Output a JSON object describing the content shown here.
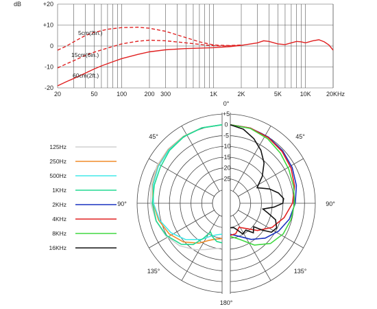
{
  "chart_data": [
    {
      "type": "line",
      "x_scale": "log",
      "ylabel": "dB",
      "xlim": [
        20,
        20000
      ],
      "ylim": [
        -20,
        20
      ],
      "y_ticks": [
        "+20",
        "+10",
        "0",
        "-10",
        "-20"
      ],
      "x_ticks": [
        {
          "v": 20,
          "label": "20"
        },
        {
          "v": 50,
          "label": "50"
        },
        {
          "v": 100,
          "label": "100"
        },
        {
          "v": 200,
          "label": "200"
        },
        {
          "v": 300,
          "label": "300"
        },
        {
          "v": 1000,
          "label": "1K"
        },
        {
          "v": 2000,
          "label": "2K"
        },
        {
          "v": 5000,
          "label": "5K"
        },
        {
          "v": 10000,
          "label": "10K"
        },
        {
          "v": 20000,
          "label": "20KHz"
        }
      ],
      "grid": true,
      "series": [
        {
          "name": "5cm(2in.)",
          "color": "#e02020",
          "dash": true,
          "points": [
            [
              20,
              -2
            ],
            [
              25,
              0
            ],
            [
              30,
              2
            ],
            [
              40,
              5
            ],
            [
              50,
              6.5
            ],
            [
              70,
              8
            ],
            [
              100,
              8.8
            ],
            [
              150,
              9
            ],
            [
              200,
              8.5
            ],
            [
              300,
              7
            ],
            [
              500,
              4
            ],
            [
              700,
              2
            ],
            [
              1000,
              0.5
            ],
            [
              1500,
              0.2
            ],
            [
              2000,
              0.5
            ]
          ]
        },
        {
          "name": "15cm(6in.)",
          "color": "#e02020",
          "dash": true,
          "points": [
            [
              20,
              -10.5
            ],
            [
              25,
              -8.5
            ],
            [
              30,
              -7
            ],
            [
              40,
              -4.5
            ],
            [
              50,
              -3
            ],
            [
              70,
              -1
            ],
            [
              100,
              1
            ],
            [
              150,
              2.3
            ],
            [
              200,
              2.8
            ],
            [
              300,
              2.5
            ],
            [
              500,
              1.5
            ],
            [
              800,
              0.5
            ],
            [
              1200,
              0
            ],
            [
              2000,
              0.3
            ]
          ]
        },
        {
          "name": "60cm(2ft.)",
          "color": "#e02020",
          "dash": false,
          "points": [
            [
              20,
              -19
            ],
            [
              25,
              -17
            ],
            [
              30,
              -15.5
            ],
            [
              40,
              -13
            ],
            [
              50,
              -11
            ],
            [
              60,
              -9.5
            ],
            [
              80,
              -7.5
            ],
            [
              100,
              -6
            ],
            [
              150,
              -4
            ],
            [
              200,
              -2.8
            ],
            [
              300,
              -1.8
            ],
            [
              500,
              -1.2
            ],
            [
              1000,
              -0.8
            ],
            [
              1500,
              -0.3
            ],
            [
              2000,
              0.3
            ],
            [
              3000,
              1.5
            ],
            [
              3500,
              2.5
            ],
            [
              4000,
              2.2
            ],
            [
              5000,
              1
            ],
            [
              6000,
              0.7
            ],
            [
              7000,
              1.5
            ],
            [
              8000,
              2.2
            ],
            [
              9000,
              2
            ],
            [
              10000,
              1.5
            ],
            [
              12000,
              2.5
            ],
            [
              14000,
              3
            ],
            [
              16000,
              2
            ],
            [
              18000,
              0.5
            ],
            [
              20000,
              -2
            ]
          ]
        }
      ]
    },
    {
      "type": "polar",
      "r_ticks": [
        "+5",
        "0",
        "-5",
        "-10",
        "-15",
        "-20",
        "-25"
      ],
      "rlim": [
        -30,
        5
      ],
      "angle_labels": [
        "0°",
        "45°",
        "90°",
        "135°",
        "180°",
        "135°",
        "90°",
        "45°"
      ],
      "legend_position": "left",
      "series": [
        {
          "name": "125Hz",
          "color": "#d0d0d0",
          "side": "left",
          "points": [
            [
              0,
              0
            ],
            [
              15,
              -0.2
            ],
            [
              30,
              -0.5
            ],
            [
              45,
              -0.9
            ],
            [
              60,
              -1.5
            ],
            [
              75,
              -2.3
            ],
            [
              90,
              -3.3
            ],
            [
              105,
              -4.6
            ],
            [
              120,
              -6.2
            ],
            [
              135,
              -8.5
            ],
            [
              150,
              -11.5
            ],
            [
              160,
              -13.5
            ],
            [
              170,
              -15
            ],
            [
              180,
              -15.5
            ]
          ]
        },
        {
          "name": "250Hz",
          "color": "#f08c28",
          "side": "left",
          "points": [
            [
              0,
              0
            ],
            [
              15,
              -0.2
            ],
            [
              30,
              -0.6
            ],
            [
              45,
              -1.2
            ],
            [
              60,
              -2
            ],
            [
              75,
              -3
            ],
            [
              90,
              -4.3
            ],
            [
              105,
              -5.9
            ],
            [
              120,
              -8
            ],
            [
              135,
              -11
            ],
            [
              150,
              -15
            ],
            [
              160,
              -18
            ],
            [
              170,
              -19.5
            ],
            [
              180,
              -20
            ]
          ]
        },
        {
          "name": "500Hz",
          "color": "#40e8e8",
          "side": "left",
          "points": [
            [
              0,
              0
            ],
            [
              15,
              -0.2
            ],
            [
              30,
              -0.7
            ],
            [
              45,
              -1.4
            ],
            [
              60,
              -2.2
            ],
            [
              75,
              -3.2
            ],
            [
              90,
              -4.5
            ],
            [
              105,
              -6.3
            ],
            [
              120,
              -9
            ],
            [
              135,
              -12.5
            ],
            [
              150,
              -17
            ],
            [
              160,
              -20
            ],
            [
              170,
              -21.5
            ],
            [
              180,
              -22
            ]
          ]
        },
        {
          "name": "1KHz",
          "color": "#20d890",
          "side": "left",
          "points": [
            [
              0,
              0
            ],
            [
              15,
              -0.2
            ],
            [
              30,
              -0.8
            ],
            [
              45,
              -1.8
            ],
            [
              60,
              -3.2
            ],
            [
              75,
              -3.8
            ],
            [
              90,
              -4
            ],
            [
              105,
              -4.7
            ],
            [
              120,
              -6.5
            ],
            [
              135,
              -9.5
            ],
            [
              145,
              -13
            ],
            [
              152,
              -18
            ],
            [
              158,
              -22
            ],
            [
              165,
              -20
            ],
            [
              172,
              -18.5
            ],
            [
              180,
              -18
            ]
          ]
        },
        {
          "name": "2KHz",
          "color": "#1830c0",
          "side": "right",
          "points": [
            [
              0,
              0
            ],
            [
              15,
              -0.3
            ],
            [
              30,
              -1
            ],
            [
              45,
              -2
            ],
            [
              60,
              -3.2
            ],
            [
              75,
              -4.6
            ],
            [
              90,
              -6.2
            ],
            [
              105,
              -8
            ],
            [
              120,
              -10.5
            ],
            [
              135,
              -13.5
            ],
            [
              150,
              -17
            ],
            [
              165,
              -20.5
            ],
            [
              180,
              -22
            ]
          ]
        },
        {
          "name": "4KHz",
          "color": "#e02020",
          "side": "right",
          "points": [
            [
              0,
              0
            ],
            [
              15,
              -0.3
            ],
            [
              30,
              -1.2
            ],
            [
              45,
              -2.4
            ],
            [
              60,
              -3.8
            ],
            [
              75,
              -5.5
            ],
            [
              90,
              -7.5
            ],
            [
              105,
              -10.5
            ],
            [
              120,
              -14
            ],
            [
              135,
              -18.5
            ],
            [
              150,
              -23
            ],
            [
              160,
              -24.5
            ],
            [
              170,
              -22
            ],
            [
              180,
              -21.5
            ]
          ]
        },
        {
          "name": "8KHz",
          "color": "#40d840",
          "side": "right",
          "points": [
            [
              0,
              0
            ],
            [
              15,
              -0.5
            ],
            [
              30,
              -1.8
            ],
            [
              45,
              -3.5
            ],
            [
              60,
              -5
            ],
            [
              75,
              -6
            ],
            [
              90,
              -6.5
            ],
            [
              105,
              -7.2
            ],
            [
              120,
              -8
            ],
            [
              135,
              -10
            ],
            [
              150,
              -14
            ],
            [
              165,
              -19
            ],
            [
              180,
              -21
            ]
          ]
        },
        {
          "name": "16KHz",
          "color": "#111111",
          "side": "right",
          "points": [
            [
              0,
              0
            ],
            [
              10,
              -1.5
            ],
            [
              20,
              -4.5
            ],
            [
              30,
              -8
            ],
            [
              40,
              -12
            ],
            [
              50,
              -17
            ],
            [
              55,
              -20
            ],
            [
              60,
              -22
            ],
            [
              70,
              -17
            ],
            [
              78,
              -13.5
            ],
            [
              85,
              -11.5
            ],
            [
              90,
              -12
            ],
            [
              95,
              -16
            ],
            [
              100,
              -21
            ],
            [
              105,
              -18
            ],
            [
              110,
              -14
            ],
            [
              118,
              -12
            ],
            [
              125,
              -13
            ],
            [
              130,
              -17
            ],
            [
              135,
              -21
            ],
            [
              142,
              -19
            ],
            [
              150,
              -22
            ],
            [
              158,
              -21
            ],
            [
              165,
              -23.5
            ],
            [
              172,
              -25
            ],
            [
              180,
              -25
            ]
          ]
        }
      ]
    }
  ]
}
